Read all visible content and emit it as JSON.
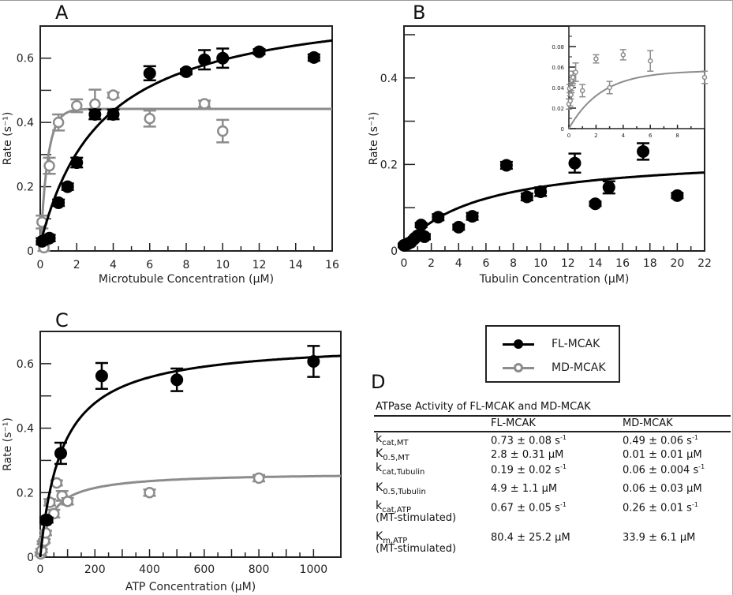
{
  "chart_data": [
    {
      "panel": "A",
      "type": "scatter",
      "title": "",
      "xlabel": "Microtubule Concentration (μM)",
      "ylabel": "Rate (s⁻¹)",
      "xlim": [
        0,
        16
      ],
      "ylim": [
        0,
        0.7
      ],
      "xticks": [
        0,
        2,
        4,
        6,
        8,
        10,
        12,
        14,
        16
      ],
      "yticks": [
        0,
        0.2,
        0.4,
        0.6
      ],
      "ytick_labels": [
        "0",
        "0.2",
        "0.4",
        "0.6"
      ],
      "grid": false,
      "series": [
        {
          "name": "FL-MCAK",
          "color": "#000000",
          "marker": "filled-circle",
          "x": [
            0.1,
            0.5,
            1,
            1.5,
            2,
            3,
            4,
            6,
            8,
            9,
            10,
            12,
            15
          ],
          "y": [
            0.03,
            0.04,
            0.15,
            0.2,
            0.275,
            0.425,
            0.425,
            0.553,
            0.558,
            0.595,
            0.6,
            0.62,
            0.602
          ],
          "err": [
            0.01,
            0.01,
            0.01,
            0.01,
            0.015,
            0.015,
            0.015,
            0.022,
            0.008,
            0.03,
            0.03,
            0.008,
            0.01
          ],
          "fit": {
            "model": "hyperbolic",
            "vmax": 0.79,
            "k": 3.4,
            "y0": 0.02
          }
        },
        {
          "name": "MD-MCAK",
          "color": "#8c8c8c",
          "marker": "open-circle",
          "x": [
            0.1,
            0.2,
            0.5,
            1,
            2,
            3,
            4,
            6,
            9,
            10
          ],
          "y": [
            0.09,
            0.01,
            0.265,
            0.4,
            0.452,
            0.457,
            0.485,
            0.412,
            0.458,
            0.373
          ],
          "err": [
            0.02,
            0.01,
            0.025,
            0.025,
            0.02,
            0.045,
            0.008,
            0.025,
            0.01,
            0.035
          ],
          "fit": {
            "model": "steep-hyperbolic",
            "vmax": 0.442,
            "k": 0.01
          }
        }
      ]
    },
    {
      "panel": "B",
      "type": "scatter",
      "title": "",
      "xlabel": "Tubulin Concentration (μM)",
      "ylabel": "Rate (s⁻¹)",
      "xlim": [
        0,
        22
      ],
      "ylim": [
        0,
        0.52
      ],
      "xticks": [
        0,
        2,
        4,
        6,
        8,
        10,
        12,
        14,
        16,
        18,
        20,
        22
      ],
      "yticks": [
        0,
        0.2,
        0.4
      ],
      "ytick_labels": [
        "0",
        "0.2",
        "0.4"
      ],
      "grid": false,
      "series": [
        {
          "name": "FL-MCAK",
          "color": "#000000",
          "marker": "filled-circle",
          "x": [
            0,
            0.1,
            0.2,
            0.3,
            0.5,
            0.75,
            1,
            1.25,
            1.5,
            2.5,
            4,
            5,
            7.5,
            9,
            10,
            12.5,
            14,
            15,
            17.5,
            20
          ],
          "y": [
            0.013,
            0.014,
            0.015,
            0.017,
            0.02,
            0.028,
            0.035,
            0.06,
            0.033,
            0.078,
            0.055,
            0.08,
            0.198,
            0.125,
            0.137,
            0.203,
            0.109,
            0.147,
            0.23,
            0.128
          ],
          "err": [
            0.004,
            0.004,
            0.004,
            0.004,
            0.004,
            0.004,
            0.005,
            0.005,
            0.006,
            0.007,
            0.006,
            0.008,
            0.008,
            0.008,
            0.01,
            0.022,
            0.005,
            0.014,
            0.019,
            0.006
          ],
          "fit": {
            "model": "hyperbolic",
            "vmax": 0.225,
            "k": 5.6,
            "y0": 0.01
          }
        }
      ],
      "inset": {
        "xlim": [
          0,
          10
        ],
        "ylim": [
          0,
          0.1
        ],
        "xticks": [
          0,
          2,
          4,
          6,
          8
        ],
        "yticks": [
          0,
          0.02,
          0.04,
          0.06,
          0.08
        ],
        "ytick_labels": [
          "0",
          "0.02",
          "0.04",
          "0.06",
          "0.08"
        ],
        "series": [
          {
            "name": "MD-MCAK",
            "color": "#8c8c8c",
            "marker": "open-circle",
            "x": [
              0,
              0.05,
              0.1,
              0.15,
              0.2,
              0.25,
              0.3,
              0.5,
              1,
              2,
              3,
              4,
              6,
              10
            ],
            "y": [
              0.024,
              0.039,
              0.027,
              0.033,
              0.04,
              0.047,
              0.05,
              0.055,
              0.037,
              0.068,
              0.04,
              0.072,
              0.066,
              0.05
            ],
            "err": [
              0.005,
              0.004,
              0.005,
              0.004,
              0.005,
              0.005,
              0.006,
              0.009,
              0.006,
              0.004,
              0.006,
              0.005,
              0.01,
              0.006
            ],
            "fit": {
              "model": "steep-hyperbolic",
              "vmax": 0.0565,
              "k": 0.06
            }
          }
        ]
      }
    },
    {
      "panel": "C",
      "type": "scatter",
      "title": "",
      "xlabel": "ATP Concentration (μM)",
      "ylabel": "Rate (s⁻¹)",
      "xlim": [
        0,
        1100
      ],
      "ylim": [
        0,
        0.7
      ],
      "xticks": [
        0,
        100,
        200,
        300,
        400,
        500,
        600,
        700,
        800,
        900,
        1000
      ],
      "xtick_labels": [
        "0",
        "",
        "200",
        "",
        "400",
        "",
        "600",
        "",
        "800",
        "",
        "1000"
      ],
      "yticks": [
        0,
        0.1,
        0.2,
        0.3,
        0.4,
        0.5,
        0.6
      ],
      "ytick_labels": [
        "0",
        "",
        "0.2",
        "",
        "0.4",
        "",
        "0.6"
      ],
      "grid": false,
      "series": [
        {
          "name": "FL-MCAK",
          "color": "#000000",
          "marker": "filled-circle",
          "x": [
            20,
            25,
            75,
            225,
            500,
            1000
          ],
          "y": [
            0.115,
            0.115,
            0.322,
            0.562,
            0.55,
            0.607
          ],
          "err": [
            0.008,
            0.008,
            0.033,
            0.04,
            0.035,
            0.048
          ],
          "fit": {
            "model": "hyperbolic",
            "vmax": 0.67,
            "k": 80.4,
            "y0": 0
          }
        },
        {
          "name": "MD-MCAK",
          "color": "#8c8c8c",
          "marker": "open-circle",
          "x": [
            2,
            5,
            10,
            15,
            20,
            35,
            50,
            60,
            80,
            100,
            400,
            800
          ],
          "y": [
            0.01,
            0.02,
            0.045,
            0.05,
            0.075,
            0.17,
            0.135,
            0.23,
            0.19,
            0.173,
            0.2,
            0.245
          ],
          "err": [
            0.005,
            0.005,
            0.005,
            0.006,
            0.007,
            0.01,
            0.012,
            0.008,
            0.015,
            0.01,
            0.01,
            0.01
          ],
          "fit": {
            "model": "hyperbolic-offset",
            "vmax": 0.26,
            "k": 33.9
          }
        }
      ]
    }
  ],
  "panels": {
    "a": {
      "letter": "A"
    },
    "b": {
      "letter": "B"
    },
    "c": {
      "letter": "C"
    },
    "d": {
      "letter": "D"
    }
  },
  "legend": {
    "items": [
      {
        "label": "FL-MCAK",
        "color": "#000000",
        "marker": "filled-circle"
      },
      {
        "label": "MD-MCAK",
        "color": "#8c8c8c",
        "marker": "open-circle"
      }
    ]
  },
  "table": {
    "title": "ATPase Activity of FL-MCAK and MD-MCAK",
    "columns": [
      "",
      "FL-MCAK",
      "MD-MCAK"
    ],
    "rows": [
      {
        "param": "k",
        "sub": "cat,MT",
        "note": "",
        "fl": "0.73 ± 0.08 s",
        "fl_unit_sup": "-1",
        "md": "0.49 ± 0.06 s",
        "md_unit_sup": "-1"
      },
      {
        "param": "K",
        "sub": "0.5,MT",
        "note": "",
        "fl": "2.8 ± 0.31 μM",
        "fl_unit_sup": "",
        "md": "0.01 ± 0.01 μM",
        "md_unit_sup": ""
      },
      {
        "param": "k",
        "sub": "cat,Tubulin",
        "note": "",
        "fl": "0.19  ± 0.02 s",
        "fl_unit_sup": "-1",
        "md": "0.06 ± 0.004 s",
        "md_unit_sup": "-1"
      },
      {
        "param": "K",
        "sub": "0.5,Tubulin",
        "note": "",
        "fl": "4.9 ± 1.1 μM",
        "fl_unit_sup": "",
        "md": "0.06 ± 0.03 μM",
        "md_unit_sup": ""
      },
      {
        "param": "k",
        "sub": "cat,ATP",
        "note": "(MT-stimulated)",
        "fl": "0.67 ± 0.05 s",
        "fl_unit_sup": "-1",
        "md": "0.26 ± 0.01 s",
        "md_unit_sup": "-1"
      },
      {
        "param": "K",
        "sub": "m,ATP",
        "note": "(MT-stimulated)",
        "fl": "80.4 ± 25.2 μM",
        "fl_unit_sup": "",
        "md": "33.9 ± 6.1 μM",
        "md_unit_sup": ""
      }
    ]
  }
}
